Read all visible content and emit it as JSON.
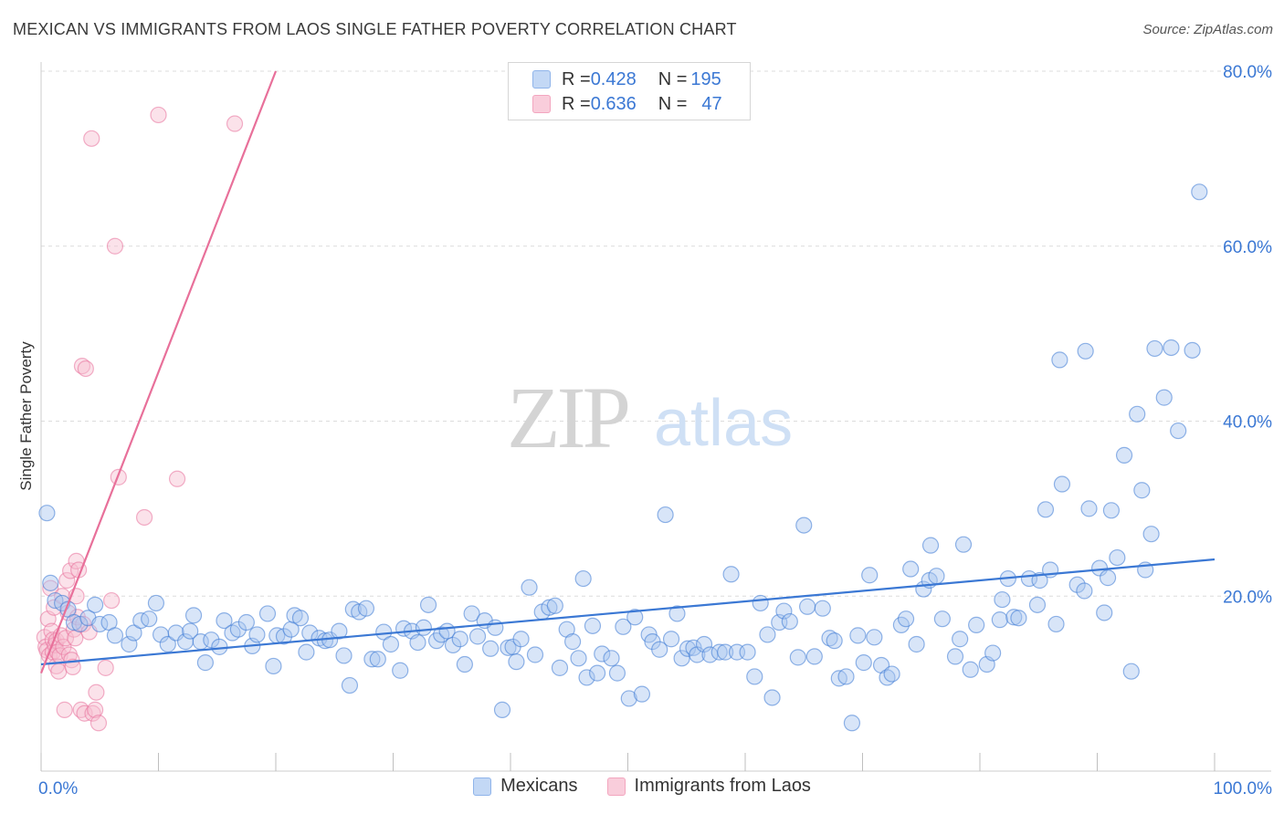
{
  "header": {
    "title": "MEXICAN VS IMMIGRANTS FROM LAOS SINGLE FATHER POVERTY CORRELATION CHART",
    "source": "Source: ZipAtlas.com"
  },
  "watermark": {
    "zip": "ZIP",
    "atlas": "atlas"
  },
  "legend_top": {
    "rows": [
      {
        "r_label": "R = ",
        "r_value": "0.428",
        "n_label": "N = ",
        "n_value": "195",
        "color": "#8fb4ea"
      },
      {
        "r_label": "R = ",
        "r_value": "0.636",
        "n_label": "N = ",
        "n_value": "47",
        "color": "#f3a6bf"
      }
    ]
  },
  "legend_bottom": {
    "items": [
      {
        "label": "Mexicans",
        "color": "#8fb4ea"
      },
      {
        "label": "Immigrants from Laos",
        "color": "#f3a6bf"
      }
    ]
  },
  "chart_data": {
    "type": "scatter",
    "title": "MEXICAN VS IMMIGRANTS FROM LAOS SINGLE FATHER POVERTY CORRELATION CHART",
    "xlabel": "",
    "ylabel": "Single Father Poverty",
    "xlim": [
      0,
      100
    ],
    "ylim": [
      0,
      80
    ],
    "x_tick_labels": [
      "0.0%",
      "100.0%"
    ],
    "y_tick_labels": [
      "20.0%",
      "40.0%",
      "60.0%",
      "80.0%"
    ],
    "y_ticks": [
      20,
      40,
      60,
      80
    ],
    "grid": true,
    "legend_placement": "top-center",
    "series": [
      {
        "name": "Mexicans",
        "color": "#3b78d4",
        "fill": "#a9c6f0",
        "r": 0.428,
        "n": 195,
        "trend": {
          "x": [
            0,
            100
          ],
          "y": [
            12.2,
            24.2
          ]
        },
        "points": [
          [
            0.5,
            29.5
          ],
          [
            0.8,
            21.5
          ],
          [
            1.2,
            19.5
          ],
          [
            1.8,
            19.2
          ],
          [
            2.3,
            18.5
          ],
          [
            2.8,
            17.0
          ],
          [
            3.3,
            16.8
          ],
          [
            4.0,
            17.5
          ],
          [
            4.6,
            19.0
          ],
          [
            5.0,
            16.8
          ],
          [
            5.8,
            17.0
          ],
          [
            6.3,
            15.5
          ],
          [
            7.5,
            14.5
          ],
          [
            7.9,
            15.8
          ],
          [
            8.5,
            17.2
          ],
          [
            9.2,
            17.4
          ],
          [
            9.8,
            19.2
          ],
          [
            10.2,
            15.6
          ],
          [
            10.8,
            14.5
          ],
          [
            11.5,
            15.8
          ],
          [
            12.3,
            14.8
          ],
          [
            12.7,
            16.0
          ],
          [
            13.0,
            17.8
          ],
          [
            13.6,
            14.8
          ],
          [
            14.0,
            12.4
          ],
          [
            14.5,
            15.0
          ],
          [
            15.2,
            14.2
          ],
          [
            15.6,
            17.2
          ],
          [
            16.3,
            15.8
          ],
          [
            16.8,
            16.2
          ],
          [
            17.5,
            17.0
          ],
          [
            18.0,
            14.3
          ],
          [
            18.4,
            15.6
          ],
          [
            19.3,
            18.0
          ],
          [
            19.8,
            12.0
          ],
          [
            20.1,
            15.5
          ],
          [
            20.7,
            15.4
          ],
          [
            21.3,
            16.2
          ],
          [
            21.6,
            17.8
          ],
          [
            22.1,
            17.5
          ],
          [
            22.6,
            13.6
          ],
          [
            22.9,
            15.8
          ],
          [
            23.7,
            15.2
          ],
          [
            24.2,
            14.9
          ],
          [
            24.6,
            15.0
          ],
          [
            25.4,
            16.0
          ],
          [
            25.8,
            13.2
          ],
          [
            26.3,
            9.8
          ],
          [
            26.6,
            18.5
          ],
          [
            27.1,
            18.2
          ],
          [
            27.7,
            18.6
          ],
          [
            28.2,
            12.8
          ],
          [
            28.7,
            12.8
          ],
          [
            29.2,
            15.9
          ],
          [
            29.8,
            14.5
          ],
          [
            30.6,
            11.5
          ],
          [
            30.9,
            16.3
          ],
          [
            31.6,
            16.0
          ],
          [
            32.1,
            14.7
          ],
          [
            32.6,
            16.4
          ],
          [
            33.0,
            19.0
          ],
          [
            33.7,
            14.9
          ],
          [
            34.1,
            15.6
          ],
          [
            34.6,
            16.0
          ],
          [
            35.1,
            14.4
          ],
          [
            35.7,
            15.1
          ],
          [
            36.1,
            12.2
          ],
          [
            36.7,
            18.0
          ],
          [
            37.2,
            15.4
          ],
          [
            37.8,
            17.2
          ],
          [
            38.3,
            14.0
          ],
          [
            38.7,
            16.4
          ],
          [
            39.3,
            7.0
          ],
          [
            39.8,
            14.1
          ],
          [
            40.2,
            14.2
          ],
          [
            40.5,
            12.5
          ],
          [
            40.9,
            15.1
          ],
          [
            41.6,
            21.0
          ],
          [
            42.1,
            13.3
          ],
          [
            42.7,
            18.2
          ],
          [
            43.3,
            18.7
          ],
          [
            43.8,
            18.9
          ],
          [
            44.2,
            11.8
          ],
          [
            44.8,
            16.2
          ],
          [
            45.3,
            14.8
          ],
          [
            45.8,
            12.9
          ],
          [
            46.2,
            22.0
          ],
          [
            46.5,
            10.7
          ],
          [
            47.0,
            16.6
          ],
          [
            47.4,
            11.2
          ],
          [
            47.8,
            13.4
          ],
          [
            48.6,
            12.9
          ],
          [
            49.1,
            11.2
          ],
          [
            49.6,
            16.5
          ],
          [
            50.1,
            8.3
          ],
          [
            50.6,
            17.6
          ],
          [
            51.2,
            8.8
          ],
          [
            51.8,
            15.6
          ],
          [
            52.1,
            14.8
          ],
          [
            52.7,
            13.9
          ],
          [
            53.2,
            29.3
          ],
          [
            53.7,
            15.1
          ],
          [
            54.2,
            18.0
          ],
          [
            54.6,
            12.9
          ],
          [
            55.1,
            14.0
          ],
          [
            55.6,
            14.1
          ],
          [
            55.9,
            13.3
          ],
          [
            56.5,
            14.5
          ],
          [
            57.0,
            13.3
          ],
          [
            57.8,
            13.6
          ],
          [
            58.3,
            13.6
          ],
          [
            58.8,
            22.5
          ],
          [
            59.3,
            13.6
          ],
          [
            60.2,
            13.6
          ],
          [
            60.8,
            10.8
          ],
          [
            61.3,
            19.2
          ],
          [
            61.9,
            15.6
          ],
          [
            62.3,
            8.4
          ],
          [
            62.9,
            17.0
          ],
          [
            63.3,
            18.3
          ],
          [
            63.8,
            17.1
          ],
          [
            64.5,
            13.0
          ],
          [
            65.0,
            28.1
          ],
          [
            65.3,
            18.8
          ],
          [
            65.9,
            13.1
          ],
          [
            66.6,
            18.6
          ],
          [
            67.2,
            15.2
          ],
          [
            67.6,
            14.9
          ],
          [
            68.0,
            10.6
          ],
          [
            68.6,
            10.8
          ],
          [
            69.1,
            5.5
          ],
          [
            69.6,
            15.5
          ],
          [
            70.1,
            12.4
          ],
          [
            70.6,
            22.4
          ],
          [
            71.0,
            15.3
          ],
          [
            71.6,
            12.1
          ],
          [
            72.1,
            10.7
          ],
          [
            72.5,
            11.1
          ],
          [
            73.3,
            16.7
          ],
          [
            73.7,
            17.4
          ],
          [
            74.1,
            23.1
          ],
          [
            74.6,
            14.5
          ],
          [
            75.2,
            20.8
          ],
          [
            75.7,
            21.8
          ],
          [
            75.8,
            25.8
          ],
          [
            76.3,
            22.3
          ],
          [
            76.8,
            17.4
          ],
          [
            77.9,
            13.1
          ],
          [
            78.3,
            15.1
          ],
          [
            78.6,
            25.9
          ],
          [
            79.2,
            11.6
          ],
          [
            79.7,
            16.7
          ],
          [
            80.6,
            12.2
          ],
          [
            81.1,
            13.5
          ],
          [
            81.7,
            17.3
          ],
          [
            81.9,
            19.6
          ],
          [
            82.4,
            22.0
          ],
          [
            82.9,
            17.6
          ],
          [
            83.3,
            17.5
          ],
          [
            84.2,
            22.0
          ],
          [
            84.9,
            19.0
          ],
          [
            85.1,
            21.8
          ],
          [
            85.6,
            29.9
          ],
          [
            86.0,
            23.0
          ],
          [
            86.5,
            16.8
          ],
          [
            86.8,
            47.0
          ],
          [
            87.0,
            32.8
          ],
          [
            88.3,
            21.3
          ],
          [
            88.9,
            20.6
          ],
          [
            89.0,
            48.0
          ],
          [
            89.3,
            30.0
          ],
          [
            90.2,
            23.2
          ],
          [
            90.6,
            18.1
          ],
          [
            90.9,
            22.1
          ],
          [
            91.2,
            29.8
          ],
          [
            91.7,
            24.4
          ],
          [
            92.3,
            36.1
          ],
          [
            92.9,
            11.4
          ],
          [
            93.4,
            40.8
          ],
          [
            93.8,
            32.1
          ],
          [
            94.1,
            23.0
          ],
          [
            94.6,
            27.1
          ],
          [
            94.9,
            48.3
          ],
          [
            95.7,
            42.7
          ],
          [
            96.3,
            48.4
          ],
          [
            96.9,
            38.9
          ],
          [
            98.1,
            48.1
          ],
          [
            98.7,
            66.2
          ]
        ]
      },
      {
        "name": "Immigrants from Laos",
        "color": "#e8709a",
        "fill": "#f7bfd0",
        "r": 0.636,
        "n": 47,
        "trend": {
          "x": [
            0,
            20
          ],
          "y": [
            11.2,
            80
          ]
        },
        "points": [
          [
            0.3,
            15.3
          ],
          [
            0.4,
            14.2
          ],
          [
            0.5,
            13.8
          ],
          [
            0.6,
            17.4
          ],
          [
            0.7,
            13.2
          ],
          [
            0.8,
            20.9
          ],
          [
            0.9,
            16.0
          ],
          [
            1.0,
            15.0
          ],
          [
            1.0,
            13.6
          ],
          [
            1.1,
            18.7
          ],
          [
            1.2,
            14.4
          ],
          [
            1.3,
            14.9
          ],
          [
            1.3,
            12.0
          ],
          [
            1.4,
            13.6
          ],
          [
            1.5,
            11.4
          ],
          [
            1.6,
            13.2
          ],
          [
            1.7,
            15.5
          ],
          [
            1.8,
            20.0
          ],
          [
            1.9,
            14.2
          ],
          [
            2.0,
            7.0
          ],
          [
            2.1,
            15.2
          ],
          [
            2.2,
            21.8
          ],
          [
            2.3,
            18.1
          ],
          [
            2.4,
            13.3
          ],
          [
            2.5,
            22.9
          ],
          [
            2.6,
            12.7
          ],
          [
            2.7,
            11.9
          ],
          [
            2.8,
            16.2
          ],
          [
            2.9,
            15.2
          ],
          [
            3.0,
            20.0
          ],
          [
            3.0,
            24.0
          ],
          [
            3.1,
            17.6
          ],
          [
            3.2,
            23.0
          ],
          [
            3.4,
            7.0
          ],
          [
            3.5,
            46.3
          ],
          [
            3.6,
            16.8
          ],
          [
            3.7,
            6.6
          ],
          [
            3.8,
            46.0
          ],
          [
            4.1,
            15.9
          ],
          [
            4.3,
            72.3
          ],
          [
            4.4,
            6.6
          ],
          [
            4.6,
            7.0
          ],
          [
            4.7,
            9.0
          ],
          [
            4.9,
            5.5
          ],
          [
            5.5,
            11.8
          ],
          [
            6.0,
            19.5
          ],
          [
            6.3,
            60.0
          ],
          [
            6.6,
            33.6
          ],
          [
            8.8,
            29.0
          ],
          [
            10.0,
            75.0
          ],
          [
            11.6,
            33.4
          ],
          [
            16.5,
            74.0
          ]
        ]
      }
    ]
  }
}
